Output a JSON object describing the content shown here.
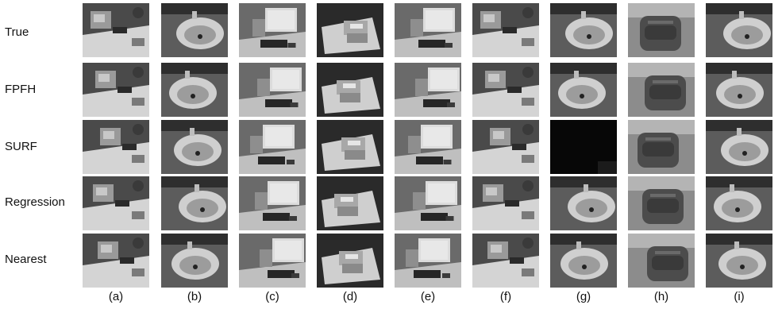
{
  "figure": {
    "row_labels": [
      "True",
      "FPFH",
      "SURF",
      "Regression",
      "Nearest"
    ],
    "column_labels": [
      "(a)",
      "(b)",
      "(c)",
      "(d)",
      "(e)",
      "(f)",
      "(g)",
      "(h)",
      "(i)"
    ],
    "scene_types": [
      "desk",
      "sink",
      "monitor",
      "table",
      "monitor",
      "desk",
      "sink",
      "bag",
      "sink"
    ]
  }
}
